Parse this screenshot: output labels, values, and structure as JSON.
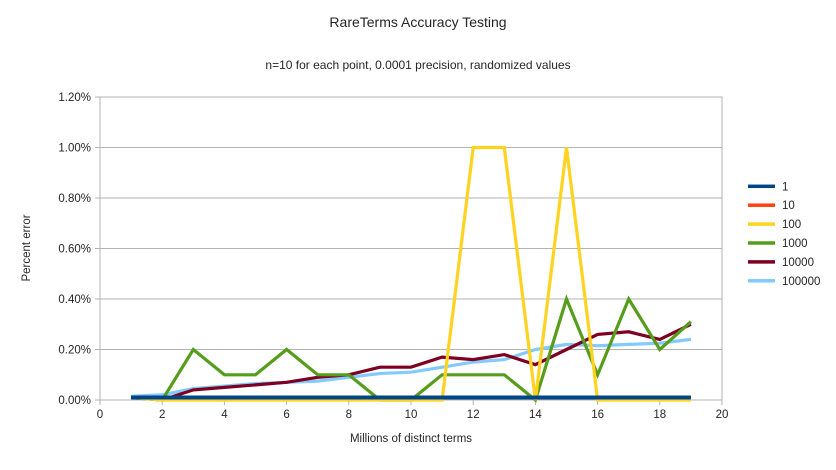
{
  "chart_data": {
    "type": "line",
    "title": "RareTerms Accuracy Testing",
    "subtitle": "n=10 for each point, 0.0001 precision, randomized values",
    "xlabel": "Millions of distinct terms",
    "ylabel": "Percent error",
    "xlim": [
      0,
      20
    ],
    "ylim": [
      0,
      1.2
    ],
    "x_tick_labels": [
      "0",
      "2",
      "4",
      "6",
      "8",
      "10",
      "12",
      "14",
      "16",
      "18",
      "20"
    ],
    "x_tick_values": [
      0,
      2,
      4,
      6,
      8,
      10,
      12,
      14,
      16,
      18,
      20
    ],
    "y_tick_labels": [
      "0.00%",
      "0.20%",
      "0.40%",
      "0.60%",
      "0.80%",
      "1.00%",
      "1.20%"
    ],
    "y_tick_values": [
      0,
      0.2,
      0.4,
      0.6,
      0.8,
      1.0,
      1.2
    ],
    "grid": "horizontal",
    "legend_position": "right",
    "x": [
      1,
      2,
      3,
      4,
      5,
      6,
      7,
      8,
      9,
      10,
      11,
      12,
      13,
      14,
      15,
      16,
      17,
      18,
      19
    ],
    "series": [
      {
        "name": "1",
        "color": "#004586",
        "width": 4,
        "values": [
          0.01,
          0.01,
          0.01,
          0.01,
          0.01,
          0.01,
          0.01,
          0.01,
          0.01,
          0.01,
          0.01,
          0.01,
          0.01,
          0.01,
          0.01,
          0.01,
          0.01,
          0.01,
          0.01
        ]
      },
      {
        "name": "10",
        "color": "#FF420E",
        "width": 3,
        "values": [
          0.01,
          0.01,
          0.01,
          0.01,
          0.01,
          0.01,
          0.01,
          0.01,
          0.01,
          0.01,
          0.01,
          0.01,
          0.01,
          0.01,
          0.01,
          0.01,
          0.01,
          0.01,
          0.01
        ]
      },
      {
        "name": "100",
        "color": "#FFD320",
        "width": 3.2,
        "values": [
          0.01,
          0.0,
          0.0,
          0.0,
          0.0,
          0.0,
          0.0,
          0.0,
          0.0,
          0.0,
          0.0,
          1.0,
          1.0,
          0.0,
          1.0,
          0.0,
          0.0,
          0.0,
          0.0
        ]
      },
      {
        "name": "1000",
        "color": "#579D1C",
        "width": 3.2,
        "values": [
          0.01,
          0.0,
          0.2,
          0.1,
          0.1,
          0.2,
          0.1,
          0.1,
          0.0,
          0.0,
          0.1,
          0.1,
          0.1,
          0.0,
          0.4,
          0.1,
          0.4,
          0.2,
          0.31
        ]
      },
      {
        "name": "10000",
        "color": "#7E0021",
        "width": 3.2,
        "values": [
          0.01,
          0.0,
          0.04,
          0.05,
          0.06,
          0.07,
          0.09,
          0.1,
          0.13,
          0.13,
          0.17,
          0.16,
          0.18,
          0.14,
          0.2,
          0.26,
          0.27,
          0.24,
          0.3
        ]
      },
      {
        "name": "100000",
        "color": "#83CAFF",
        "width": 3.2,
        "values": [
          0.015,
          0.02,
          0.045,
          0.055,
          0.065,
          0.07,
          0.075,
          0.09,
          0.105,
          0.11,
          0.13,
          0.15,
          0.16,
          0.2,
          0.22,
          0.215,
          0.22,
          0.225,
          0.24
        ]
      }
    ],
    "z_order": "first_series_on_top",
    "colors": {
      "grid": "#b3b3b3",
      "axis": "#b3b3b3",
      "tick_text": "#262626"
    }
  }
}
